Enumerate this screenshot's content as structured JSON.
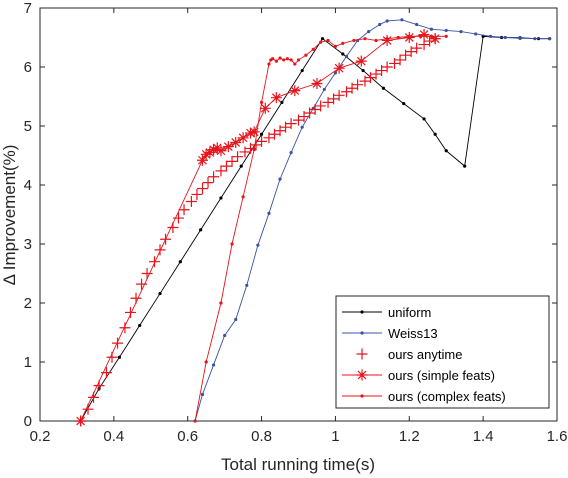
{
  "chart_data": {
    "type": "line",
    "xlabel": "Total running time(s)",
    "ylabel": "Δ Improvement(%)",
    "xlim": [
      0.2,
      1.6
    ],
    "ylim": [
      0,
      7
    ],
    "xticks": [
      0.2,
      0.4,
      0.6,
      0.8,
      1,
      1.2,
      1.4,
      1.6
    ],
    "xtick_labels": [
      "0.2",
      "0.4",
      "0.6",
      "0.8",
      "1",
      "1.2",
      "1.4",
      "1.6"
    ],
    "yticks": [
      0,
      1,
      2,
      3,
      4,
      5,
      6,
      7
    ],
    "ytick_labels": [
      "0",
      "1",
      "2",
      "3",
      "4",
      "5",
      "6",
      "7"
    ],
    "grid": false,
    "legend_position": "bottom-right",
    "series": [
      {
        "name": "uniform",
        "color": "#000000",
        "marker": "dot",
        "x": [
          0.31,
          0.36,
          0.415,
          0.47,
          0.525,
          0.58,
          0.635,
          0.69,
          0.745,
          0.8,
          0.855,
          0.91,
          0.965,
          1.02,
          1.075,
          1.13,
          1.185,
          1.24,
          1.27,
          1.3,
          1.35,
          1.4,
          1.45,
          1.5,
          1.55,
          1.58
        ],
        "y": [
          0.0,
          0.55,
          1.08,
          1.62,
          2.16,
          2.7,
          3.24,
          3.78,
          4.32,
          4.86,
          5.4,
          5.94,
          6.48,
          6.22,
          5.94,
          5.64,
          5.38,
          5.12,
          4.86,
          4.58,
          4.32,
          6.52,
          6.5,
          6.49,
          6.48,
          6.48
        ]
      },
      {
        "name": "Weiss13",
        "color": "#3953a4",
        "marker": "dot",
        "x": [
          0.62,
          0.64,
          0.67,
          0.7,
          0.73,
          0.76,
          0.79,
          0.82,
          0.85,
          0.88,
          0.91,
          0.94,
          0.97,
          1.0,
          1.03,
          1.06,
          1.09,
          1.12,
          1.14,
          1.18,
          1.22,
          1.26,
          1.3,
          1.34,
          1.38,
          1.42,
          1.46,
          1.5,
          1.54,
          1.58
        ],
        "y": [
          0.0,
          0.45,
          0.95,
          1.45,
          1.72,
          2.3,
          2.98,
          3.52,
          4.1,
          4.55,
          4.98,
          5.3,
          5.62,
          5.9,
          6.18,
          6.45,
          6.6,
          6.72,
          6.78,
          6.8,
          6.72,
          6.64,
          6.62,
          6.6,
          6.56,
          6.52,
          6.5,
          6.5,
          6.48,
          6.48
        ]
      },
      {
        "name": "ours anytime",
        "color": "#e8141b",
        "marker": "plus",
        "x": [
          0.31,
          0.33,
          0.345,
          0.36,
          0.38,
          0.395,
          0.41,
          0.43,
          0.445,
          0.46,
          0.475,
          0.49,
          0.51,
          0.525,
          0.54,
          0.56,
          0.575,
          0.59,
          0.61,
          0.625,
          0.64,
          0.655,
          0.67,
          0.69,
          0.705,
          0.72,
          0.735,
          0.755,
          0.77,
          0.785,
          0.8,
          0.82,
          0.835,
          0.85,
          0.865,
          0.88,
          0.9,
          0.915,
          0.93,
          0.945,
          0.96,
          0.98,
          0.995,
          1.01,
          1.03,
          1.045,
          1.06,
          1.08,
          1.095,
          1.11,
          1.125,
          1.14,
          1.16,
          1.175,
          1.19,
          1.205,
          1.22,
          1.24,
          1.255,
          1.27
        ],
        "y": [
          0.0,
          0.2,
          0.4,
          0.6,
          0.82,
          1.08,
          1.32,
          1.58,
          1.84,
          2.08,
          2.32,
          2.5,
          2.7,
          2.9,
          3.08,
          3.28,
          3.44,
          3.58,
          3.72,
          3.84,
          3.94,
          4.04,
          4.14,
          4.24,
          4.32,
          4.4,
          4.48,
          4.56,
          4.62,
          4.68,
          4.74,
          4.8,
          4.86,
          4.92,
          4.98,
          5.04,
          5.1,
          5.16,
          5.22,
          5.28,
          5.34,
          5.4,
          5.46,
          5.52,
          5.58,
          5.64,
          5.7,
          5.76,
          5.82,
          5.88,
          5.94,
          6.0,
          6.06,
          6.12,
          6.2,
          6.26,
          6.32,
          6.38,
          6.44,
          6.48
        ]
      },
      {
        "name": "ours (simple feats)",
        "color": "#e8141b",
        "marker": "asterisk",
        "x": [
          0.31,
          0.64,
          0.65,
          0.66,
          0.67,
          0.68,
          0.69,
          0.71,
          0.73,
          0.75,
          0.77,
          0.78,
          0.81,
          0.84,
          0.89,
          0.95,
          1.01,
          1.07,
          1.14,
          1.2,
          1.24,
          1.27
        ],
        "y": [
          0.0,
          4.42,
          4.52,
          4.55,
          4.6,
          4.63,
          4.58,
          4.65,
          4.72,
          4.8,
          4.88,
          4.9,
          5.3,
          5.48,
          5.6,
          5.72,
          5.98,
          6.1,
          6.45,
          6.5,
          6.55,
          6.48
        ]
      },
      {
        "name": "ours (complex feats)",
        "color": "#e8141b",
        "marker": "dot",
        "x": [
          0.62,
          0.65,
          0.69,
          0.72,
          0.75,
          0.78,
          0.8,
          0.82,
          0.825,
          0.83,
          0.84,
          0.85,
          0.86,
          0.87,
          0.88,
          0.89,
          0.9,
          0.92,
          0.94,
          0.96,
          0.98,
          1.0,
          1.02,
          1.05,
          1.08,
          1.11,
          1.14,
          1.17,
          1.2,
          1.23,
          1.26,
          1.3
        ],
        "y": [
          0.0,
          1.0,
          2.0,
          3.0,
          3.8,
          4.6,
          5.4,
          6.05,
          6.12,
          6.14,
          6.1,
          6.15,
          6.12,
          6.14,
          6.12,
          6.05,
          6.12,
          6.2,
          6.3,
          6.42,
          6.45,
          6.35,
          6.4,
          6.45,
          6.48,
          6.45,
          6.48,
          6.5,
          6.52,
          6.52,
          6.52,
          6.52
        ]
      }
    ]
  }
}
